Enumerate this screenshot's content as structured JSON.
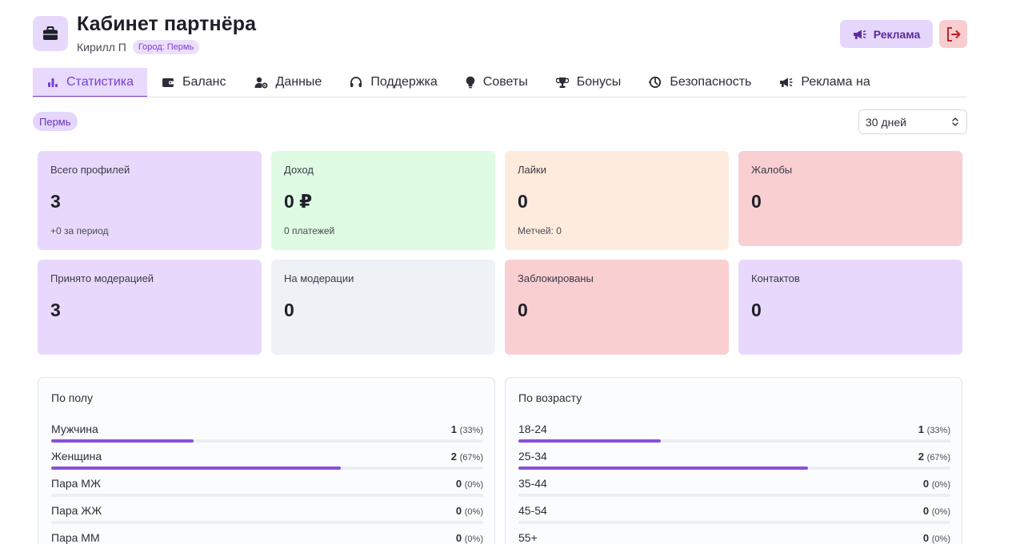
{
  "header": {
    "title": "Кабинет партнёра",
    "user_name": "Кирилл П",
    "city_badge": "Город: Пермь",
    "ad_button": "Реклама"
  },
  "tabs": [
    {
      "label": "Статистика",
      "icon": "bar-chart-icon",
      "active": true
    },
    {
      "label": "Баланс",
      "icon": "wallet-icon",
      "active": false
    },
    {
      "label": "Данные",
      "icon": "user-gear-icon",
      "active": false
    },
    {
      "label": "Поддержка",
      "icon": "headset-icon",
      "active": false
    },
    {
      "label": "Советы",
      "icon": "lightbulb-icon",
      "active": false
    },
    {
      "label": "Бонусы",
      "icon": "trophy-icon",
      "active": false
    },
    {
      "label": "Безопасность",
      "icon": "shield-icon",
      "active": false
    },
    {
      "label": "Реклама на",
      "icon": "megaphone-icon",
      "active": false
    }
  ],
  "filters": {
    "city_chip": "Пермь",
    "period": "30 дней"
  },
  "stats": [
    {
      "label": "Всего профилей",
      "value": "3",
      "sub": "+0 за период",
      "color": "#e8d9fc"
    },
    {
      "label": "Доход",
      "value": "0 ₽",
      "sub": "0 платежей",
      "color": "#dffbe3"
    },
    {
      "label": "Лайки",
      "value": "0",
      "sub": "Метчей: 0",
      "color": "#fdecdd"
    },
    {
      "label": "Жалобы",
      "value": "0",
      "sub": "",
      "color": "#f9cfd1"
    },
    {
      "label": "Принято модерацией",
      "value": "3",
      "sub": "",
      "color": "#e8d9fc"
    },
    {
      "label": "На модерации",
      "value": "0",
      "sub": "",
      "color": "#eef2f7"
    },
    {
      "label": "Заблокированы",
      "value": "0",
      "sub": "",
      "color": "#f9cfd1"
    },
    {
      "label": "Контактов",
      "value": "0",
      "sub": "",
      "color": "#e8d9fc"
    }
  ],
  "gender_panel": {
    "title": "По полу",
    "rows": [
      {
        "label": "Мужчина",
        "count": "1",
        "pct": "(33%)",
        "share": 0.33
      },
      {
        "label": "Женщина",
        "count": "2",
        "pct": "(67%)",
        "share": 0.67
      },
      {
        "label": "Пара МЖ",
        "count": "0",
        "pct": "(0%)",
        "share": 0
      },
      {
        "label": "Пара ЖЖ",
        "count": "0",
        "pct": "(0%)",
        "share": 0
      },
      {
        "label": "Пара ММ",
        "count": "0",
        "pct": "(0%)",
        "share": 0
      }
    ]
  },
  "age_panel": {
    "title": "По возрасту",
    "rows": [
      {
        "label": "18-24",
        "count": "1",
        "pct": "(33%)",
        "share": 0.33
      },
      {
        "label": "25-34",
        "count": "2",
        "pct": "(67%)",
        "share": 0.67
      },
      {
        "label": "35-44",
        "count": "0",
        "pct": "(0%)",
        "share": 0
      },
      {
        "label": "45-54",
        "count": "0",
        "pct": "(0%)",
        "share": 0
      },
      {
        "label": "55+",
        "count": "0",
        "pct": "(0%)",
        "share": 0
      }
    ]
  },
  "colors": {
    "accent": "#7a3fd1",
    "bar": "#8a4fd9"
  }
}
